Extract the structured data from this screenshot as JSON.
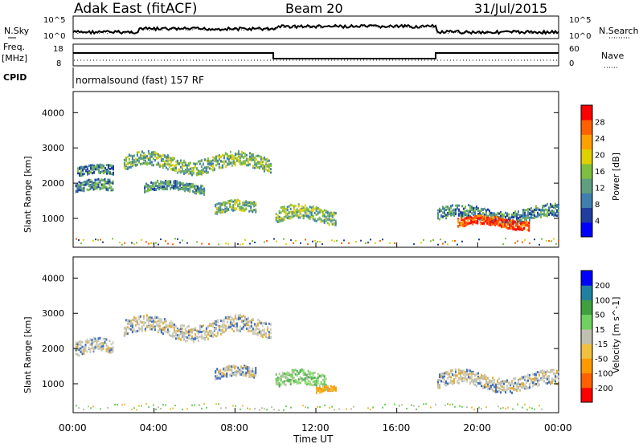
{
  "header": {
    "station": "Adak East (fitACF)",
    "beam": "Beam 20",
    "date": "31/Jul/2015"
  },
  "noise_panel": {
    "left_label": "N.Sky",
    "right_label": "N.Search",
    "tick_top": "10^5",
    "tick_bottom": "10^0"
  },
  "freq_panel": {
    "left_label_1": "Freq.",
    "left_label_2": "[MHz]",
    "right_label": "Nave",
    "left_tick_top": "18",
    "left_tick_bottom": "8",
    "right_tick_top": "60",
    "right_tick_bottom": "0"
  },
  "cpid_panel": {
    "label": "CPID",
    "mode_text": "normalsound (fast) 157 RF"
  },
  "x_axis": {
    "title": "Time UT",
    "ticks": [
      "00:00",
      "04:00",
      "08:00",
      "12:00",
      "16:00",
      "20:00",
      "00:00"
    ]
  },
  "chart_data": [
    {
      "type": "heatmap",
      "parameter": "power",
      "ylabel": "Slant Range [km]",
      "xlabel": "",
      "ylim": [
        180,
        4600
      ],
      "yticks": [
        "4000",
        "3000",
        "2000",
        "1000"
      ],
      "colorbar_label": "Power [dB]",
      "colorbar_ticks": [
        "28",
        "24",
        "20",
        "16",
        "12",
        "8",
        "4"
      ],
      "colorbar_colors": [
        "#0000ff",
        "#1f3f9f",
        "#3f7faf",
        "#5f9f7f",
        "#7fbf3f",
        "#e0d000",
        "#ffa000",
        "#ff6000",
        "#ff0000"
      ],
      "echo_regions": [
        {
          "t_start": 0.1,
          "t_end": 2.0,
          "r_center": 1900,
          "r_width": 300,
          "level": "low"
        },
        {
          "t_start": 0.2,
          "t_end": 2.0,
          "r_center": 2350,
          "r_width": 250,
          "level": "low"
        },
        {
          "t_start": 2.5,
          "t_end": 9.8,
          "r_center": 2600,
          "r_width": 400,
          "level": "mid"
        },
        {
          "t_start": 3.5,
          "t_end": 6.5,
          "r_center": 1900,
          "r_width": 250,
          "level": "low"
        },
        {
          "t_start": 7.0,
          "t_end": 9.0,
          "r_center": 1300,
          "r_width": 300,
          "level": "mid"
        },
        {
          "t_start": 10.0,
          "t_end": 13.0,
          "r_center": 1100,
          "r_width": 400,
          "level": "mid"
        },
        {
          "t_start": 18.0,
          "t_end": 24.0,
          "r_center": 1150,
          "r_width": 350,
          "level": "low"
        },
        {
          "t_start": 19.0,
          "t_end": 22.5,
          "r_center": 900,
          "r_width": 250,
          "level": "high"
        }
      ]
    },
    {
      "type": "heatmap",
      "parameter": "velocity",
      "ylabel": "Slant Range [km]",
      "xlabel": "Time UT",
      "ylim": [
        180,
        4600
      ],
      "yticks": [
        "4000",
        "3000",
        "2000",
        "1000"
      ],
      "colorbar_label": "Velocity [m s^-1]",
      "colorbar_ticks": [
        "200",
        "100",
        "50",
        "15",
        "-15",
        "-50",
        "-100",
        "-200"
      ],
      "colorbar_colors": [
        "#ff0000",
        "#ff6000",
        "#ff9900",
        "#f0c040",
        "#c0c0b0",
        "#70d060",
        "#40a040",
        "#2080a0",
        "#0000ff"
      ],
      "echo_regions": [
        {
          "t_start": 0.1,
          "t_end": 2.0,
          "r_center": 2000,
          "r_width": 400,
          "level": "gray"
        },
        {
          "t_start": 2.5,
          "t_end": 9.8,
          "r_center": 2600,
          "r_width": 450,
          "level": "gray"
        },
        {
          "t_start": 7.0,
          "t_end": 9.0,
          "r_center": 1300,
          "r_width": 300,
          "level": "gray"
        },
        {
          "t_start": 10.0,
          "t_end": 12.5,
          "r_center": 1100,
          "r_width": 400,
          "level": "green"
        },
        {
          "t_start": 12.0,
          "t_end": 13.0,
          "r_center": 850,
          "r_width": 150,
          "level": "orange"
        },
        {
          "t_start": 18.0,
          "t_end": 24.0,
          "r_center": 1100,
          "r_width": 400,
          "level": "gray"
        }
      ]
    }
  ]
}
